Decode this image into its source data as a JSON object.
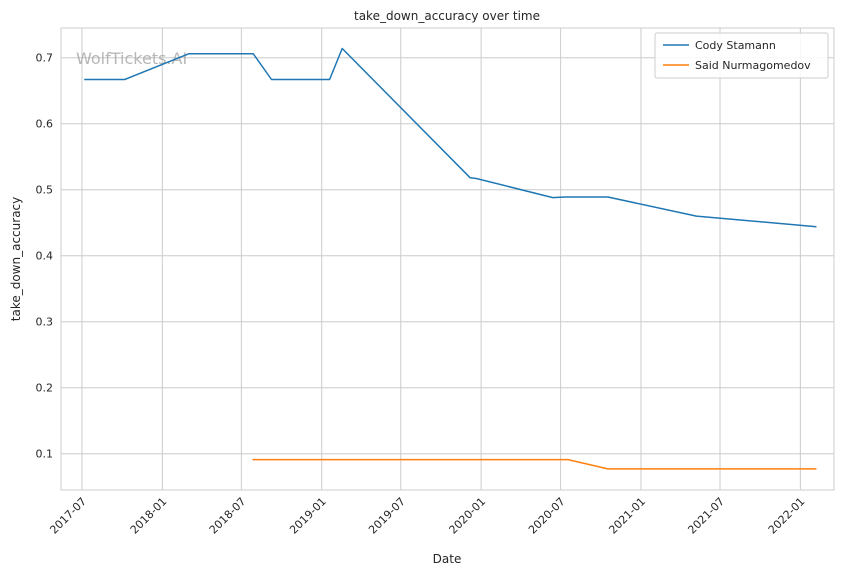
{
  "chart_data": {
    "type": "line",
    "title": "take_down_accuracy over time",
    "xlabel": "Date",
    "ylabel": "take_down_accuracy",
    "watermark": "WolfTickets.AI",
    "x_ticks": [
      "2017-07",
      "2018-01",
      "2018-07",
      "2019-01",
      "2019-07",
      "2020-01",
      "2020-07",
      "2021-01",
      "2021-07",
      "2022-01"
    ],
    "y_ticks": [
      "0.1",
      "0.2",
      "0.3",
      "0.4",
      "0.5",
      "0.6",
      "0.7"
    ],
    "xlim": [
      "2017-05-14",
      "2022-03-19"
    ],
    "ylim": [
      0.045,
      0.745
    ],
    "grid": true,
    "legend_position": "top-right",
    "series": [
      {
        "name": "Cody Stamann",
        "color": "#1f77b4",
        "x": [
          "2017-07-08",
          "2017-10-07",
          "2018-03-03",
          "2018-07-28",
          "2018-09-08",
          "2019-01-19",
          "2019-02-17",
          "2019-12-07",
          "2019-12-21",
          "2020-06-13",
          "2020-07-11",
          "2020-10-17",
          "2021-05-08",
          "2022-02-05"
        ],
        "values": [
          0.667,
          0.667,
          0.706,
          0.706,
          0.667,
          0.667,
          0.714,
          0.518,
          0.517,
          0.488,
          0.489,
          0.489,
          0.46,
          0.444
        ]
      },
      {
        "name": "Said Nurmagomedov",
        "color": "#ff7f0e",
        "x": [
          "2018-07-28",
          "2020-07-18",
          "2020-10-17",
          "2022-02-05"
        ],
        "values": [
          0.091,
          0.091,
          0.077,
          0.077
        ]
      }
    ]
  }
}
